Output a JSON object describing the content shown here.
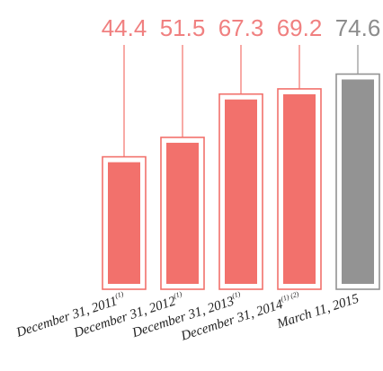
{
  "chart_data": {
    "type": "bar",
    "title": "",
    "xlabel": "",
    "ylabel": "",
    "ylim": [
      0,
      80
    ],
    "grid": false,
    "legend": "none",
    "categories": [
      {
        "label": "December 31, 2011",
        "note": "(1)"
      },
      {
        "label": "December 31, 2012",
        "note": "(1)"
      },
      {
        "label": "December 31, 2013",
        "note": "(1)"
      },
      {
        "label": "December 31, 2014",
        "note": "(1) (2)"
      },
      {
        "label": "March 11, 2015",
        "note": ""
      }
    ],
    "values": [
      44.4,
      51.5,
      67.3,
      69.2,
      74.6
    ],
    "value_labels": [
      "44.4",
      "51.5",
      "67.3",
      "69.2",
      "74.6"
    ],
    "colors": {
      "historic": "#f2716c",
      "latest": "#939393",
      "historic_label": "#f08080",
      "latest_label": "#8c8c8c"
    }
  }
}
